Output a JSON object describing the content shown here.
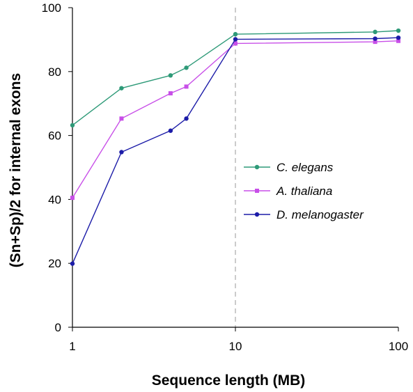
{
  "chart_data": {
    "type": "line",
    "xlabel": "Sequence length (MB)",
    "ylabel": "(Sn+Sp)/2 for internal exons",
    "xscale": "log",
    "xlim": [
      1,
      100
    ],
    "ylim": [
      0,
      100
    ],
    "x_ticks": [
      "1",
      "10",
      "100"
    ],
    "y_ticks": [
      "0",
      "20",
      "40",
      "60",
      "80",
      "100"
    ],
    "vertical_reference_line": 10,
    "grid": false,
    "legend_position": "right-center",
    "series": [
      {
        "name": "C. elegans",
        "color": "#2e9a78",
        "marker": "circle",
        "x": [
          1,
          2,
          4,
          5,
          10,
          72,
          100
        ],
        "y": [
          63.2,
          74.8,
          78.8,
          81.2,
          91.7,
          92.4,
          92.8
        ]
      },
      {
        "name": "A. thaliana",
        "color": "#c84fe8",
        "marker": "square",
        "x": [
          1,
          2,
          4,
          5,
          10,
          72,
          100
        ],
        "y": [
          40.5,
          65.3,
          73.2,
          75.3,
          88.8,
          89.3,
          89.6
        ]
      },
      {
        "name": "D. melanogaster",
        "color": "#1c1ca8",
        "marker": "circle",
        "x": [
          1,
          2,
          4,
          5,
          10,
          72,
          100
        ],
        "y": [
          19.9,
          54.8,
          61.5,
          65.3,
          90.1,
          90.3,
          90.6
        ]
      }
    ]
  }
}
